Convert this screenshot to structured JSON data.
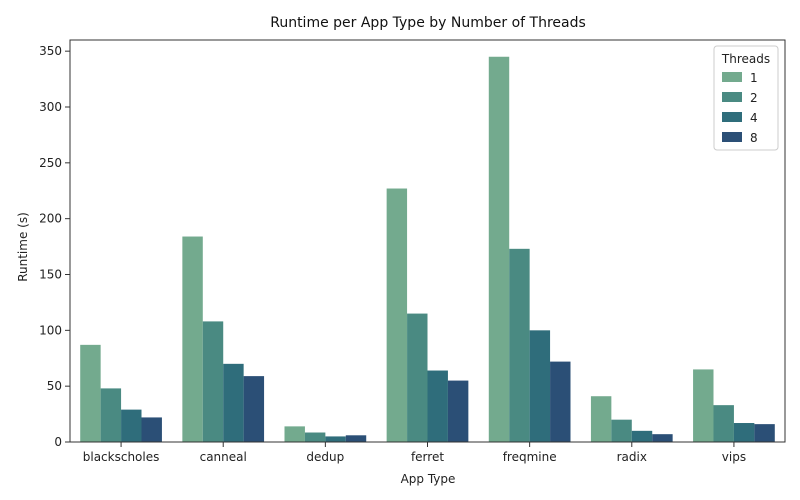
{
  "chart_data": {
    "type": "bar",
    "title": "Runtime per App Type by Number of Threads",
    "xlabel": "App Type",
    "ylabel": "Runtime (s)",
    "ylim": [
      0,
      360
    ],
    "yticks": [
      0,
      50,
      100,
      150,
      200,
      250,
      300,
      350
    ],
    "categories": [
      "blackscholes",
      "canneal",
      "dedup",
      "ferret",
      "freqmine",
      "radix",
      "vips"
    ],
    "legend": {
      "title": "Threads",
      "placement": "top-right"
    },
    "grid": false,
    "series": [
      {
        "name": "1",
        "color": "#73aa8e",
        "values": [
          87,
          184,
          14,
          227,
          345,
          41,
          65
        ]
      },
      {
        "name": "2",
        "color": "#4a8a82",
        "values": [
          48,
          108,
          8.5,
          115,
          173,
          20,
          33
        ]
      },
      {
        "name": "4",
        "color": "#2f6d7b",
        "values": [
          29,
          70,
          5,
          64,
          100,
          10,
          17
        ]
      },
      {
        "name": "8",
        "color": "#2b4f76",
        "values": [
          22,
          59,
          6,
          55,
          72,
          7,
          16
        ]
      }
    ]
  }
}
